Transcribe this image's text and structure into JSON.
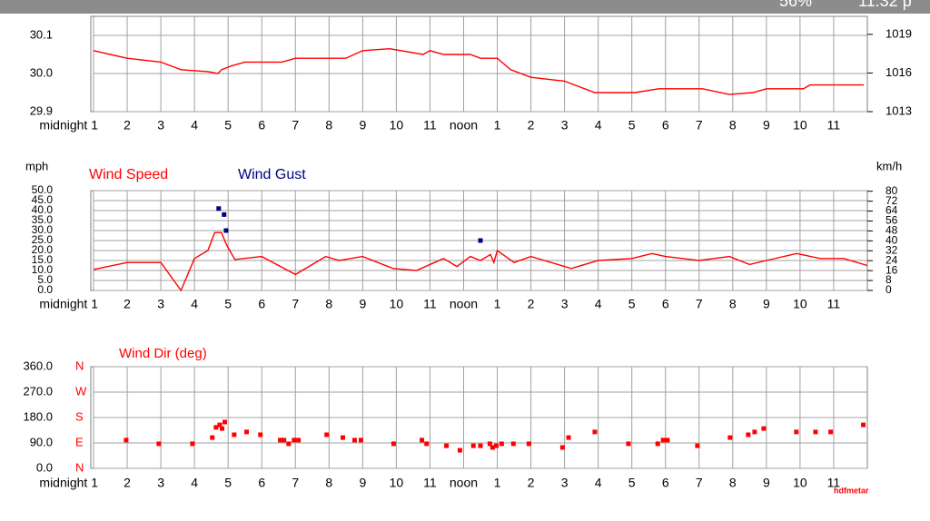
{
  "status_bar": {
    "battery": "56%",
    "time": "11:32 p"
  },
  "chart_data": [
    {
      "type": "line",
      "grid": true,
      "ylim": [
        29.9,
        30.15
      ],
      "yticks": [
        {
          "value": 29.9,
          "label": "29.9"
        },
        {
          "value": 30.0,
          "label": "30.0"
        },
        {
          "value": 30.1,
          "label": "30.1"
        }
      ],
      "y2lim": [
        1013,
        1020.4
      ],
      "y2ticks": [
        1013,
        1016,
        1019
      ],
      "xlim": [
        1,
        24
      ],
      "xticks": [
        {
          "value": 1,
          "label": "midnight 1"
        },
        2,
        3,
        4,
        5,
        6,
        7,
        8,
        9,
        10,
        11,
        {
          "value": 12,
          "label": "noon"
        },
        {
          "value": 13,
          "label": "1"
        },
        {
          "value": 14,
          "label": "2"
        },
        {
          "value": 15,
          "label": "3"
        },
        {
          "value": 16,
          "label": "4"
        },
        {
          "value": 17,
          "label": "5"
        },
        {
          "value": 18,
          "label": "6"
        },
        {
          "value": 19,
          "label": "7"
        },
        {
          "value": 20,
          "label": "8"
        },
        {
          "value": 21,
          "label": "9"
        },
        {
          "value": 22,
          "label": "10"
        },
        {
          "value": 23,
          "label": "11"
        }
      ],
      "series": [
        {
          "color": "#ff0000",
          "style": "line",
          "x": [
            1.0,
            2.0,
            3.0,
            3.6,
            4.4,
            4.7,
            4.8,
            5.1,
            5.5,
            6.6,
            7.0,
            8.5,
            9.0,
            9.8,
            10.8,
            11.0,
            11.4,
            12.2,
            12.5,
            13.0,
            13.4,
            14.0,
            15.0,
            15.9,
            17.1,
            17.8,
            19.1,
            19.9,
            20.6,
            21.0,
            22.1,
            22.3,
            23.9
          ],
          "values": [
            30.06,
            30.04,
            30.03,
            30.01,
            30.005,
            30.0,
            30.01,
            30.02,
            30.03,
            30.03,
            30.04,
            30.04,
            30.06,
            30.065,
            30.05,
            30.06,
            30.05,
            30.05,
            30.04,
            30.04,
            30.01,
            29.99,
            29.98,
            29.95,
            29.95,
            29.96,
            29.96,
            29.945,
            29.95,
            29.96,
            29.96,
            29.97,
            29.97
          ]
        }
      ]
    },
    {
      "type": "line",
      "grid": true,
      "y_label": "mph",
      "y2_label": "km/h",
      "ylim": [
        0,
        50
      ],
      "yticks": [
        {
          "value": 0,
          "label": "0.0"
        },
        {
          "value": 5,
          "label": "5.0"
        },
        {
          "value": 10,
          "label": "10.0"
        },
        {
          "value": 15,
          "label": "15.0"
        },
        {
          "value": 20,
          "label": "20.0"
        },
        {
          "value": 25,
          "label": "25.0"
        },
        {
          "value": 30,
          "label": "30.0"
        },
        {
          "value": 35,
          "label": "35.0"
        },
        {
          "value": 40,
          "label": "40.0"
        },
        {
          "value": 45,
          "label": "45.0"
        },
        {
          "value": 50,
          "label": "50.0"
        }
      ],
      "y2lim": [
        0,
        80.5
      ],
      "y2ticks": [
        0,
        8,
        16,
        24,
        32,
        40,
        48,
        56,
        64,
        72,
        80
      ],
      "xlim": [
        1,
        24
      ],
      "xticks": [
        {
          "value": 1,
          "label": "midnight 1"
        },
        2,
        3,
        4,
        5,
        6,
        7,
        8,
        9,
        10,
        11,
        {
          "value": 12,
          "label": "noon"
        },
        {
          "value": 13,
          "label": "1"
        },
        {
          "value": 14,
          "label": "2"
        },
        {
          "value": 15,
          "label": "3"
        },
        {
          "value": 16,
          "label": "4"
        },
        {
          "value": 17,
          "label": "5"
        },
        {
          "value": 18,
          "label": "6"
        },
        {
          "value": 19,
          "label": "7"
        },
        {
          "value": 20,
          "label": "8"
        },
        {
          "value": 21,
          "label": "9"
        },
        {
          "value": 22,
          "label": "10"
        },
        {
          "value": 23,
          "label": "11"
        }
      ],
      "series": [
        {
          "name": "Wind Speed",
          "color": "#ff0000",
          "style": "line",
          "x": [
            1.0,
            2.0,
            3.0,
            3.6,
            4.0,
            4.4,
            4.6,
            4.8,
            4.95,
            5.2,
            6.0,
            7.0,
            7.9,
            8.3,
            9.0,
            9.9,
            10.6,
            11.4,
            11.8,
            12.2,
            12.5,
            12.8,
            12.9,
            13.0,
            13.5,
            14.0,
            15.2,
            16.0,
            17.0,
            17.6,
            18.0,
            19.0,
            19.9,
            20.5,
            21.0,
            21.9,
            22.6,
            23.3,
            24.0
          ],
          "values": [
            10.5,
            14,
            14,
            0,
            16,
            20,
            29,
            29,
            23,
            15.5,
            17,
            8,
            17,
            15,
            17,
            11,
            10,
            16,
            12,
            17,
            15,
            18,
            14,
            20,
            14,
            17,
            11,
            15,
            16,
            18.5,
            17,
            15,
            17,
            13,
            15,
            18.5,
            16,
            16,
            12.5
          ]
        },
        {
          "name": "Wind Gust",
          "color": "#000080",
          "style": "points",
          "x": [
            4.72,
            4.88,
            4.94,
            12.5
          ],
          "values": [
            41,
            38,
            30,
            25
          ]
        }
      ]
    },
    {
      "type": "scatter",
      "grid": true,
      "title": "Wind Dir (deg)",
      "annotation": "hdfmetar",
      "ylim": [
        0,
        360
      ],
      "yticks": [
        {
          "value": 0,
          "label": "0.0"
        },
        {
          "value": 90,
          "label": "90.0"
        },
        {
          "value": 180,
          "label": "180.0"
        },
        {
          "value": 270,
          "label": "270.0"
        },
        {
          "value": 360,
          "label": "360.0"
        }
      ],
      "y2lim": [
        0,
        360
      ],
      "y2ticks": [
        {
          "value": 0,
          "label": "N"
        },
        {
          "value": 90,
          "label": "E"
        },
        {
          "value": 180,
          "label": "S"
        },
        {
          "value": 270,
          "label": "W"
        },
        {
          "value": 360,
          "label": "N"
        }
      ],
      "xlim": [
        1,
        24
      ],
      "xticks": [
        {
          "value": 1,
          "label": "midnight 1"
        },
        2,
        3,
        4,
        5,
        6,
        7,
        8,
        9,
        10,
        11,
        {
          "value": 12,
          "label": "noon"
        },
        {
          "value": 13,
          "label": "1"
        },
        {
          "value": 14,
          "label": "2"
        },
        {
          "value": 15,
          "label": "3"
        },
        {
          "value": 16,
          "label": "4"
        },
        {
          "value": 17,
          "label": "5"
        },
        {
          "value": 18,
          "label": "6"
        },
        {
          "value": 19,
          "label": "7"
        },
        {
          "value": 20,
          "label": "8"
        },
        {
          "value": 21,
          "label": "9"
        },
        {
          "value": 22,
          "label": "10"
        },
        {
          "value": 23,
          "label": "11"
        }
      ],
      "series": [
        {
          "color": "#ff0000",
          "style": "points",
          "x": [
            1.97,
            2.94,
            3.94,
            4.53,
            4.64,
            4.75,
            4.82,
            4.9,
            5.18,
            5.55,
            5.96,
            6.55,
            6.66,
            6.8,
            6.96,
            7.09,
            7.93,
            8.41,
            8.76,
            8.95,
            9.92,
            10.76,
            10.9,
            11.49,
            11.89,
            12.29,
            12.5,
            12.78,
            12.86,
            12.97,
            13.13,
            13.48,
            13.94,
            14.94,
            15.12,
            15.9,
            16.9,
            17.77,
            17.93,
            18.06,
            18.95,
            19.92,
            20.46,
            20.65,
            20.92,
            21.89,
            22.46,
            22.91,
            23.88
          ],
          "values": [
            100,
            87,
            87,
            109,
            145,
            154,
            141,
            164,
            119,
            129,
            119,
            100,
            100,
            87,
            100,
            100,
            119,
            109,
            100,
            100,
            87,
            100,
            87,
            80,
            64,
            80,
            80,
            87,
            74,
            80,
            87,
            87,
            87,
            74,
            109,
            129,
            87,
            87,
            100,
            100,
            80,
            109,
            119,
            129,
            141,
            129,
            129,
            129,
            154
          ]
        }
      ]
    }
  ]
}
